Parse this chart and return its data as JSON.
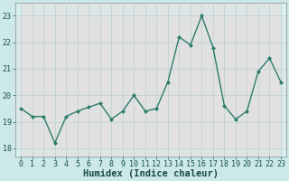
{
  "x": [
    0,
    1,
    2,
    3,
    4,
    5,
    6,
    7,
    8,
    9,
    10,
    11,
    12,
    13,
    14,
    15,
    16,
    17,
    18,
    19,
    20,
    21,
    22,
    23
  ],
  "y": [
    19.5,
    19.2,
    19.2,
    18.2,
    19.2,
    19.4,
    19.55,
    19.7,
    19.1,
    19.4,
    20.0,
    19.4,
    19.5,
    20.5,
    22.2,
    21.9,
    23.0,
    21.8,
    19.6,
    19.1,
    19.4,
    20.9,
    21.4,
    20.5
  ],
  "line_color": "#2d7d6b",
  "markersize": 2.0,
  "linewidth": 1.0,
  "bg_color": "#cce8e8",
  "plot_bg_color": "#d8f0f0",
  "grid_color": "#b8d0d0",
  "alt_band_color": "#e8d8d8",
  "xlabel": "Humidex (Indice chaleur)",
  "ylim": [
    17.7,
    23.5
  ],
  "xlim": [
    -0.5,
    23.5
  ],
  "yticks": [
    18,
    19,
    20,
    21,
    22,
    23
  ],
  "xticks": [
    0,
    1,
    2,
    3,
    4,
    5,
    6,
    7,
    8,
    9,
    10,
    11,
    12,
    13,
    14,
    15,
    16,
    17,
    18,
    19,
    20,
    21,
    22,
    23
  ],
  "tick_fontsize": 6,
  "xlabel_fontsize": 7.5
}
